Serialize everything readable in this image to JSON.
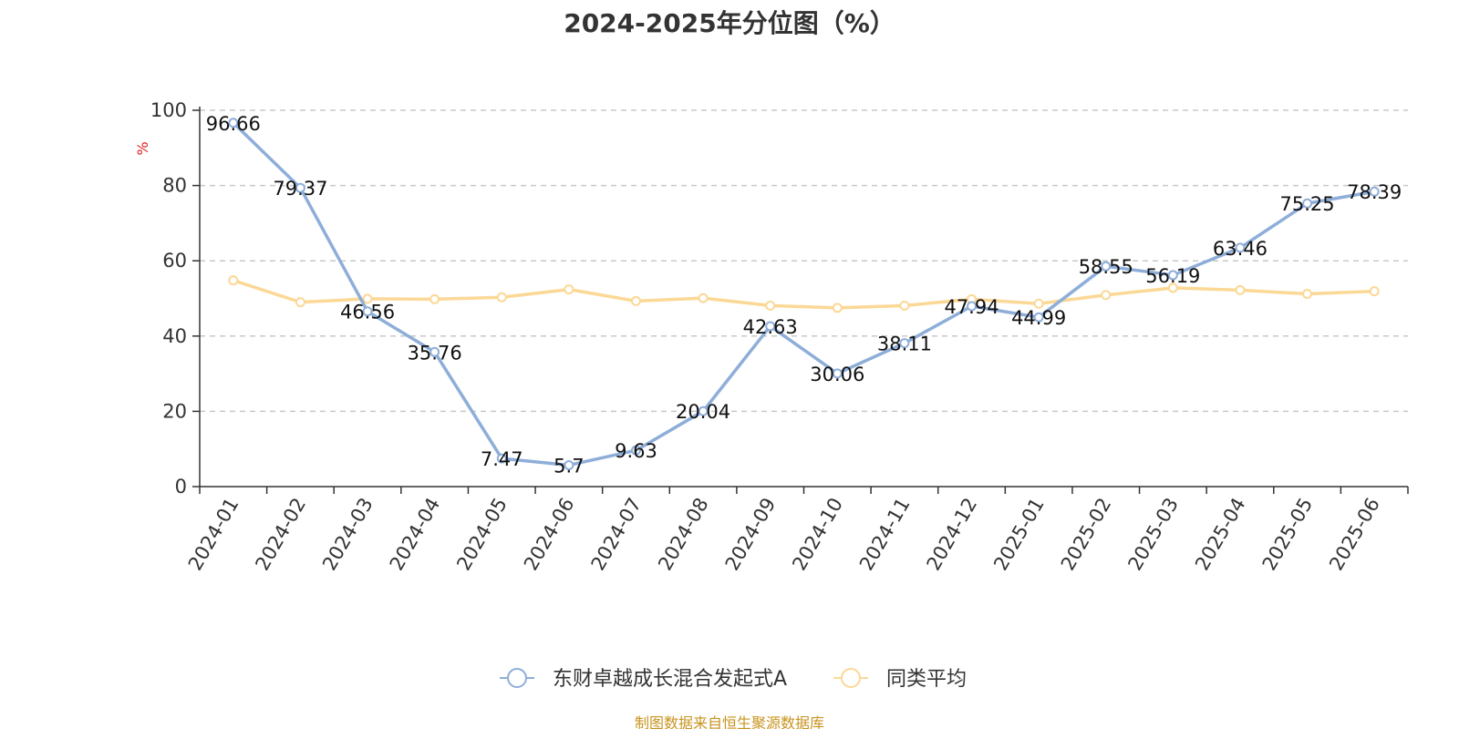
{
  "title": "2024-2025年分位图（%）",
  "source_note": "制图数据来自恒生聚源数据库",
  "chart_data": {
    "type": "line",
    "title": "2024-2025年分位图（%）",
    "xlabel": "",
    "ylabel": "%",
    "ylim": [
      0,
      100
    ],
    "yticks": [
      0,
      20,
      40,
      60,
      80,
      100
    ],
    "grid": true,
    "legend_position": "bottom",
    "categories": [
      "2024-01",
      "2024-02",
      "2024-03",
      "2024-04",
      "2024-05",
      "2024-06",
      "2024-07",
      "2024-08",
      "2024-09",
      "2024-10",
      "2024-11",
      "2024-12",
      "2025-01",
      "2025-02",
      "2025-03",
      "2025-04",
      "2025-05",
      "2025-06"
    ],
    "series": [
      {
        "name": "东财卓越成长混合发起式A",
        "color": "#8eaed9",
        "show_labels": true,
        "values": [
          96.66,
          79.37,
          46.56,
          35.76,
          7.47,
          5.7,
          9.63,
          20.04,
          42.63,
          30.06,
          38.11,
          47.94,
          44.99,
          58.55,
          56.19,
          63.46,
          75.25,
          78.39
        ],
        "labels": [
          "96.66",
          "79.37",
          "46.56",
          "35.76",
          "7.47",
          "5.7",
          "9.63",
          "20.04",
          "42.63",
          "30.06",
          "38.11",
          "47.94",
          "44.99",
          "58.55",
          "56.19",
          "63.46",
          "75.25",
          "78.39"
        ]
      },
      {
        "name": "同类平均",
        "color": "#fbd896",
        "show_labels": false,
        "values": [
          54.8,
          49.0,
          49.9,
          49.8,
          50.3,
          52.4,
          49.3,
          50.1,
          48.1,
          47.5,
          48.1,
          49.8,
          48.6,
          50.9,
          52.8,
          52.2,
          51.2,
          51.9
        ]
      }
    ]
  }
}
